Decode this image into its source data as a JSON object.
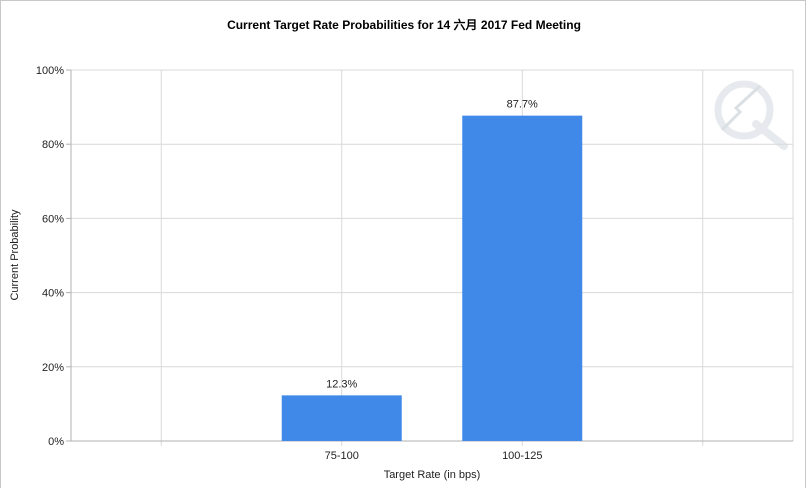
{
  "chart_data": {
    "type": "bar",
    "title": "Current Target Rate Probabilities for 14 六月 2017 Fed Meeting",
    "xlabel": "Target Rate (in bps)",
    "ylabel": "Current Probability",
    "categories": [
      "",
      "75-100",
      "100-125",
      ""
    ],
    "values": [
      null,
      12.3,
      87.7,
      null
    ],
    "data_labels": [
      "",
      "12.3%",
      "87.7%",
      ""
    ],
    "ylim": [
      0,
      100
    ],
    "y_ticks": [
      0,
      20,
      40,
      60,
      80,
      100
    ],
    "y_tick_labels": [
      "0%",
      "20%",
      "40%",
      "60%",
      "80%",
      "100%"
    ],
    "grid": true,
    "legend": "none",
    "colors": {
      "bar": "#4189e8",
      "grid": "#d9d9d9",
      "axis": "#b0b0b0"
    }
  }
}
